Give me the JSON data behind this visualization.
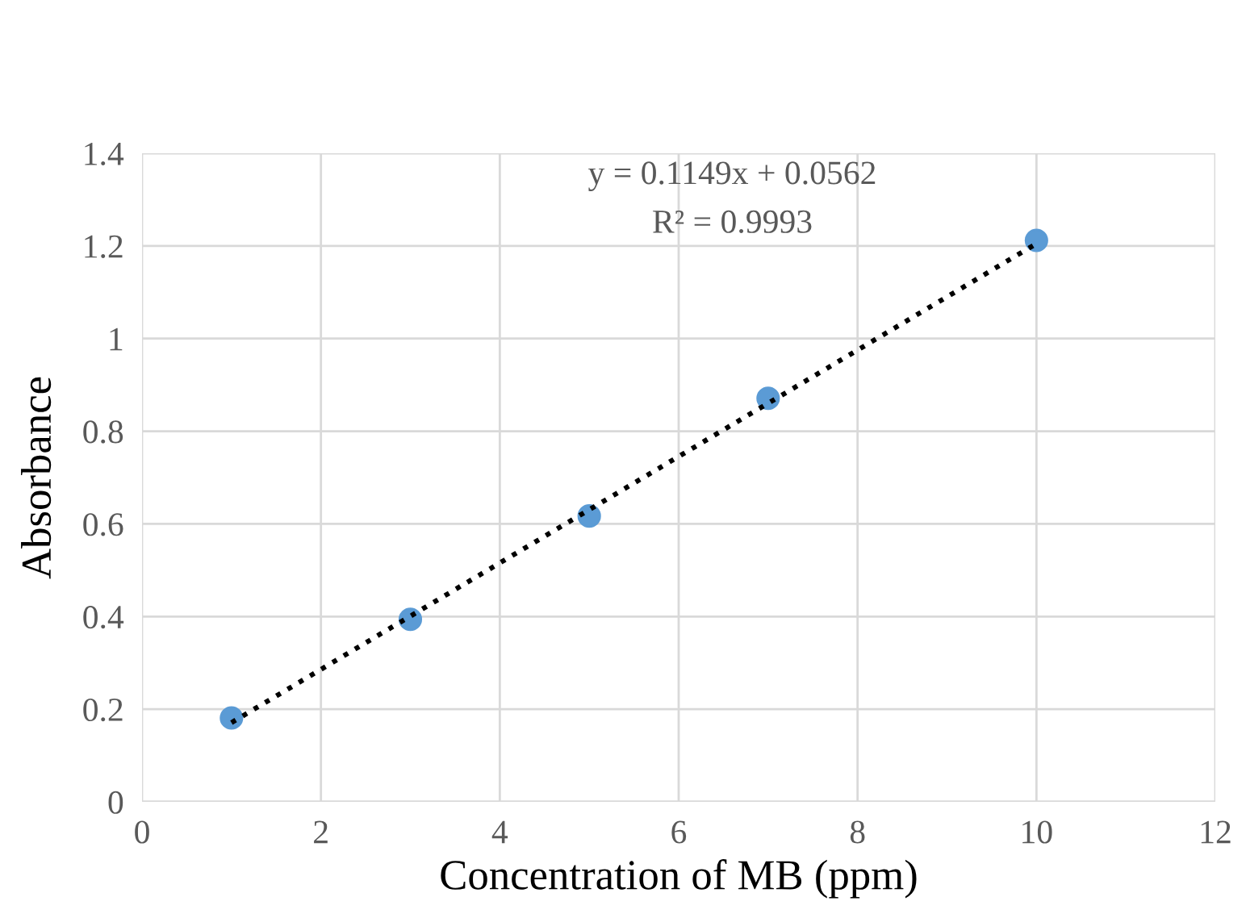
{
  "chart_data": {
    "type": "scatter",
    "xlabel": "Concentration of MB (ppm)",
    "ylabel": "Absorbance",
    "x": [
      1,
      3,
      5,
      7,
      10
    ],
    "series": [
      {
        "color": "#5b9bd5",
        "marker": "circle",
        "values": [
          0.181,
          0.394,
          0.617,
          0.871,
          1.212
        ]
      },
      {
        "type": "line",
        "color": "#000000",
        "line_style": "dotted",
        "marker": "none",
        "x": [
          1,
          10
        ],
        "values": [
          0.171,
          1.205
        ]
      }
    ],
    "annotations": [
      "y = 0.1149x + 0.0562",
      "R² = 0.9993"
    ],
    "xlim": [
      0,
      12
    ],
    "xticks": [
      0,
      2,
      4,
      6,
      8,
      10,
      12
    ],
    "ylim": [
      0,
      1.4
    ],
    "yticks": [
      0,
      0.2,
      0.4,
      0.6,
      0.8,
      1,
      1.2,
      1.4
    ],
    "grid": true,
    "legend": false
  }
}
